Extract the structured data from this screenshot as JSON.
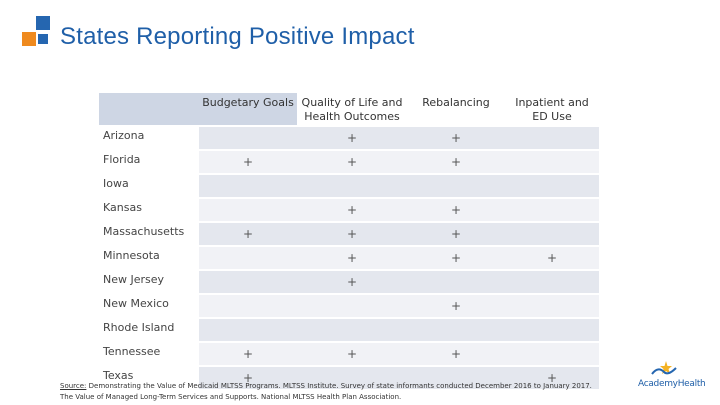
{
  "title": "States Reporting Positive Impact",
  "columns": [
    "Budgetary Goals",
    "Quality of Life and Health Outcomes",
    "Rebalancing",
    "Inpatient and ED Use"
  ],
  "rows": [
    {
      "state": "Arizona",
      "cells": [
        "",
        "+",
        "+",
        ""
      ]
    },
    {
      "state": "Florida",
      "cells": [
        "+",
        "+",
        "+",
        ""
      ]
    },
    {
      "state": "Iowa",
      "cells": [
        "",
        "",
        "",
        ""
      ]
    },
    {
      "state": "Kansas",
      "cells": [
        "",
        "+",
        "+",
        ""
      ]
    },
    {
      "state": "Massachusetts",
      "cells": [
        "+",
        "+",
        "+",
        ""
      ]
    },
    {
      "state": "Minnesota",
      "cells": [
        "",
        "+",
        "+",
        "+"
      ]
    },
    {
      "state": "New Jersey",
      "cells": [
        "",
        "+",
        "",
        ""
      ]
    },
    {
      "state": "New Mexico",
      "cells": [
        "",
        "",
        "+",
        ""
      ]
    },
    {
      "state": "Rhode Island",
      "cells": [
        "",
        "",
        "",
        ""
      ]
    },
    {
      "state": "Tennessee",
      "cells": [
        "+",
        "+",
        "+",
        ""
      ]
    },
    {
      "state": "Texas",
      "cells": [
        "+",
        "",
        "",
        "+"
      ]
    }
  ],
  "source": {
    "label": "Source:",
    "line1": "Demonstrating the Value of Medicaid MLTSS Programs. MLTSS Institute. Survey of state informants conducted December 2016 to January 2017.",
    "line2": "The Value of Managed Long-Term Services and Supports. National MLTSS Health Plan Association."
  },
  "logo_text": "AcademyHealth",
  "colors": {
    "title": "#1f5fa8",
    "accent_orange": "#ef8a1e",
    "accent_blue": "#2566b0",
    "header_fill": "#ced6e4",
    "row_dark": "#e4e7ee",
    "row_light": "#f1f2f6"
  }
}
